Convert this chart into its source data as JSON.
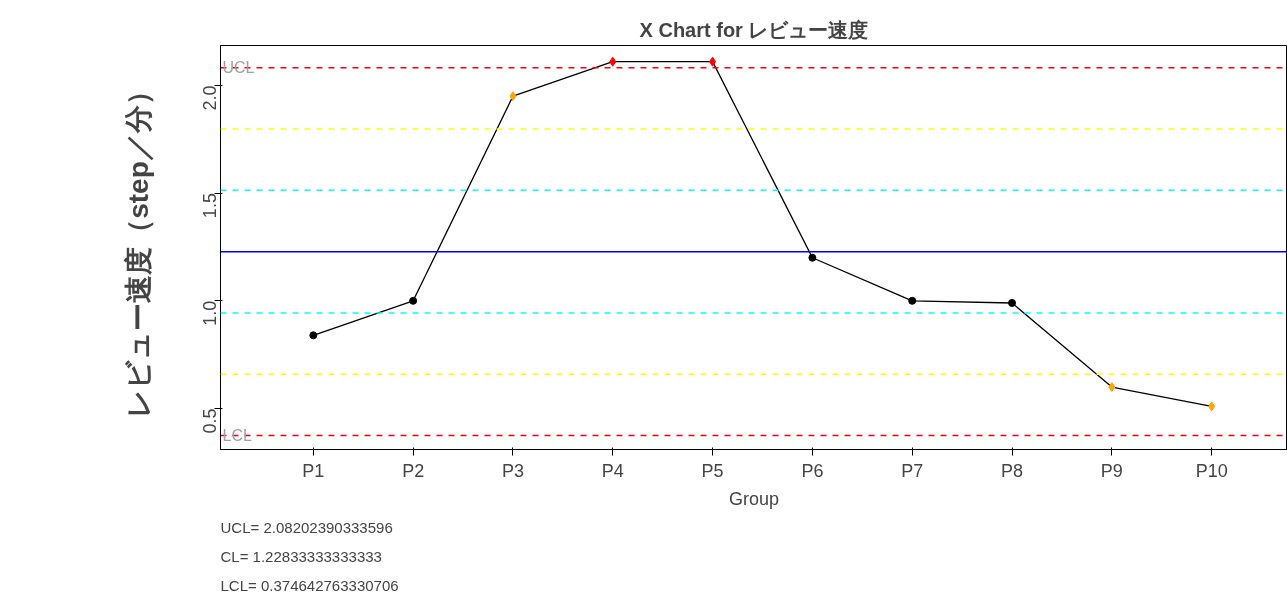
{
  "chart_data": {
    "type": "line",
    "title": "X Chart for レビュー速度",
    "xlabel": "Group",
    "ylabel": "レビュー速度（step／分）",
    "categories": [
      "P1",
      "P2",
      "P3",
      "P4",
      "P5",
      "P6",
      "P7",
      "P8",
      "P9",
      "P10"
    ],
    "series": [
      {
        "color": "#000000",
        "values": [
          0.84,
          1.0,
          1.95,
          2.11,
          2.11,
          1.2,
          1.0,
          0.99,
          0.6,
          0.51
        ],
        "colors": [
          "#000000",
          "#000000",
          "#ffa500",
          "#ff0000",
          "#ff0000",
          "#000000",
          "#000000",
          "#000000",
          "#ffa500",
          "#ffa500"
        ]
      }
    ],
    "ylim": [
      0.31,
      2.185
    ],
    "yticks": [
      0.5,
      {
        "value": 1.0,
        "label": "1.0"
      },
      1.5,
      {
        "value": 2.0,
        "label": "2.0"
      }
    ],
    "marker": "circle",
    "line_style": "solid",
    "grid": false,
    "ref_lines": [
      {
        "axis": "y",
        "value": 2.08202390333596,
        "label": "UCL",
        "color": "#ff0000",
        "line_style": "dashed"
      },
      {
        "axis": "y",
        "value": 1.797,
        "color": "#ffff00",
        "line_style": "dashed"
      },
      {
        "axis": "y",
        "value": 1.513,
        "color": "#00ffff",
        "line_style": "dashed"
      },
      {
        "axis": "y",
        "value": 1.22833333333333,
        "color": "#0000ff",
        "line_style": "solid"
      },
      {
        "axis": "y",
        "value": 0.944,
        "color": "#00ffff",
        "line_style": "dashed"
      },
      {
        "axis": "y",
        "value": 0.659,
        "color": "#ffff00",
        "line_style": "dashed"
      },
      {
        "axis": "y",
        "value": 0.374642763330706,
        "label": "LCL",
        "color": "#ff0000",
        "line_style": "dashed"
      }
    ],
    "annotations": [
      "UCL= 2.08202390333596",
      "CL= 1.22833333333333",
      "LCL= 0.374642763330706"
    ]
  }
}
